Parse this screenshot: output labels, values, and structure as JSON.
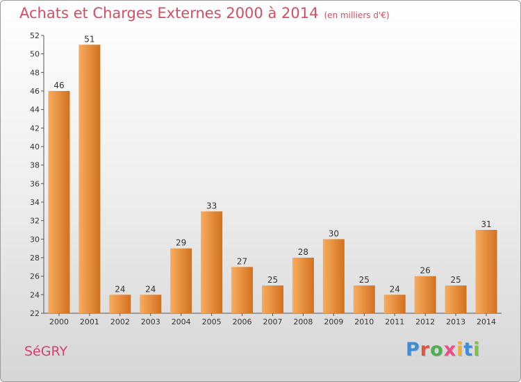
{
  "title": "Achats et Charges Externes 2000 à 2014",
  "unit_note": "(en milliers d'€)",
  "commune": "SéGRY",
  "logo": {
    "text": "Proxiti",
    "letter_colors": [
      "#3a8fd8",
      "#e0563b",
      "#4caf50",
      "#e84d8a",
      "#f2b01e",
      "#3a8fd8",
      "#7cc242"
    ]
  },
  "colors": {
    "bar_light": "#f8ac5e",
    "bar_dark": "#d2711f",
    "title": "#d64d63"
  },
  "chart_data": {
    "type": "bar",
    "categories": [
      "2000",
      "2001",
      "2002",
      "2003",
      "2004",
      "2005",
      "2006",
      "2007",
      "2008",
      "2009",
      "2010",
      "2011",
      "2012",
      "2013",
      "2014"
    ],
    "values": [
      46,
      51,
      24,
      24,
      29,
      33,
      27,
      25,
      28,
      30,
      25,
      24,
      26,
      25,
      31
    ],
    "ylim": [
      22,
      52
    ],
    "yticks": [
      22,
      24,
      26,
      28,
      30,
      32,
      34,
      36,
      38,
      40,
      42,
      44,
      46,
      48,
      50,
      52
    ],
    "grid": false
  }
}
